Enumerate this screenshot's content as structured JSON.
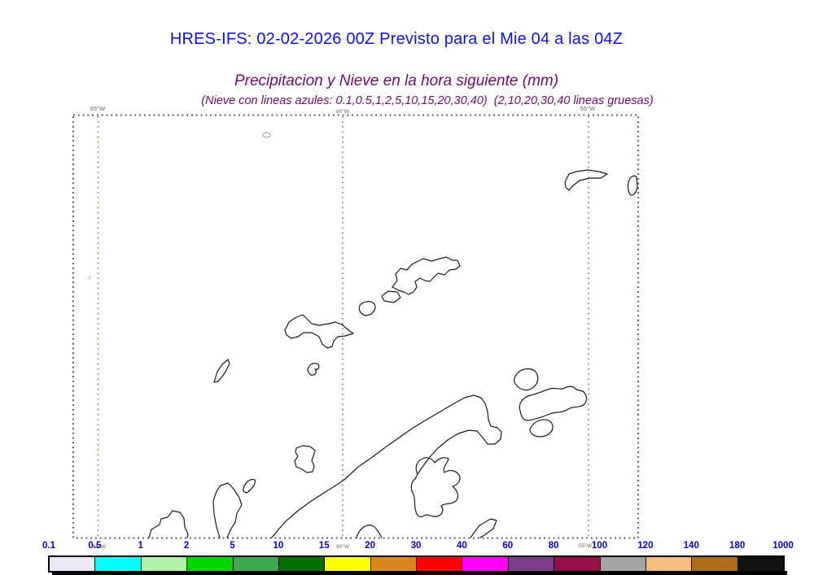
{
  "header": {
    "title": "HRES-IFS: 02-02-2026 00Z Previsto para el Mie 04 a las 04Z",
    "subtitle": "Precipitacion y Nieve en la hora siguiente (mm)",
    "subtitle_note": "(Nieve con lineas azules: 0.1,0.5,1,2,5,10,15,20,30,40)  (2,10,20,30,40 lineas gruesas)"
  },
  "colors": {
    "title_blue": "#0f0fee",
    "subtitle_purple": "#6e0a6e",
    "colorbar_label_blue": "#0000cd",
    "frame_dots": "#57513c",
    "meridian_dots": "#8f7340",
    "coastline": "#1a1a1a"
  },
  "map": {
    "lon_labels": [
      "65°W",
      "60°W",
      "55°W"
    ],
    "lat_label": "0"
  },
  "colorbar": {
    "tick_labels": [
      "0.1",
      "0.5",
      "1",
      "2",
      "5",
      "10",
      "15",
      "20",
      "30",
      "40",
      "60",
      "80",
      "100",
      "120",
      "140",
      "180",
      "1000"
    ],
    "segment_colors": [
      "#e9e9f4",
      "#00ffff",
      "#b4f0a5",
      "#00d500",
      "#3ba94e",
      "#056e05",
      "#ffff00",
      "#d9861f",
      "#ff0000",
      "#ff00ff",
      "#7e3d8a",
      "#98104b",
      "#a3a3a3",
      "#f4bd80",
      "#ad6c17",
      "#121212"
    ]
  }
}
